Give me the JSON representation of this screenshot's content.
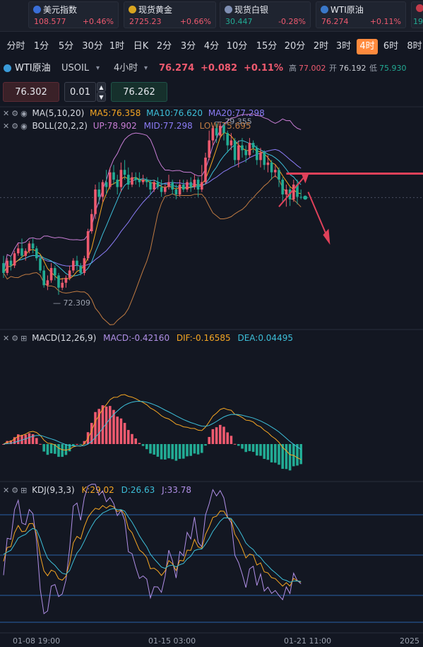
{
  "ticker": [
    {
      "name": "美元指数",
      "price": "108.577",
      "change": "+0.46%",
      "icon": "us-flag-icon",
      "dir": "up"
    },
    {
      "name": "现货黄金",
      "price": "2725.23",
      "change": "+0.66%",
      "icon": "gold-icon",
      "dir": "up"
    },
    {
      "name": "现货白银",
      "price": "30.447",
      "change": "-0.28%",
      "icon": "silver-icon",
      "dir": "down"
    },
    {
      "name": "WTI原油",
      "price": "76.274",
      "change": "+0.11%",
      "icon": "oil-icon",
      "dir": "up"
    },
    {
      "name": "",
      "price": "19",
      "change": "",
      "icon": "uk-flag-icon",
      "dir": "down"
    }
  ],
  "timeframes": [
    "分时",
    "1分",
    "5分",
    "30分",
    "1时",
    "日K",
    "2分",
    "3分",
    "4分",
    "10分",
    "15分",
    "20分",
    "2时",
    "3时",
    "4时",
    "6时",
    "8时"
  ],
  "active_timeframe": "4时",
  "symbol": {
    "name": "WTI原油",
    "code": "USOIL",
    "period": "4小时",
    "price": "76.274",
    "change": "+0.082",
    "change_pct": "+0.11%",
    "high_label": "高",
    "high": "77.002",
    "open_label": "开",
    "open": "76.192",
    "low_label": "低",
    "low": "75.930"
  },
  "order": {
    "sell": "76.302",
    "qty": "0.01",
    "buy": "76.262"
  },
  "ma_legend": {
    "label": "MA(5,10,20)",
    "ma5": "MA5:76.358",
    "ma10": "MA10:76.620",
    "ma20": "MA20:77.298"
  },
  "boll_legend": {
    "label": "BOLL(20,2,2)",
    "up": "UP:78.902",
    "mid": "MID:77.298",
    "low": "LOW:75.695"
  },
  "macd_legend": {
    "label": "MACD(12,26,9)",
    "macd": "MACD:-0.42160",
    "dif": "DIF:-0.16585",
    "dea": "DEA:0.04495"
  },
  "kdj_legend": {
    "label": "KDJ(9,3,3)",
    "k": "K:29.02",
    "d": "D:26.63",
    "j": "J:33.78"
  },
  "annotations": {
    "high": "79.355",
    "low": "72.309"
  },
  "x_ticks": [
    "01-08 19:00",
    "01-15 03:00",
    "01-21 11:00",
    "2025"
  ],
  "colors": {
    "up": "#ef5a6f",
    "down": "#22ab94",
    "ma5": "#f5a623",
    "ma10": "#3dbfd9",
    "ma20": "#8b7cf6",
    "boll_up": "#c77dd4",
    "boll_low": "#c07b42",
    "bg": "#131722",
    "accent": "#ff8a3d"
  },
  "chart_data": {
    "type": "candlestick",
    "ylim": [
      71.5,
      80.0
    ],
    "candles": [
      [
        73.6,
        73.2,
        73.9,
        73.0
      ],
      [
        73.2,
        73.7,
        73.8,
        73.1
      ],
      [
        73.7,
        73.5,
        73.9,
        73.3
      ],
      [
        73.5,
        74.0,
        74.1,
        73.4
      ],
      [
        74.0,
        74.2,
        74.4,
        73.9
      ],
      [
        74.2,
        73.9,
        74.6,
        73.8
      ],
      [
        73.9,
        74.1,
        74.2,
        73.7
      ],
      [
        74.1,
        74.4,
        74.5,
        74.0
      ],
      [
        74.4,
        74.2,
        74.6,
        74.0
      ],
      [
        74.2,
        73.8,
        74.3,
        73.7
      ],
      [
        73.8,
        73.3,
        73.9,
        73.2
      ],
      [
        73.3,
        72.7,
        73.5,
        72.6
      ],
      [
        72.7,
        72.9,
        73.1,
        72.5
      ],
      [
        72.9,
        73.4,
        73.6,
        72.8
      ],
      [
        73.4,
        73.1,
        73.5,
        72.9
      ],
      [
        73.1,
        72.6,
        73.2,
        72.31
      ],
      [
        72.6,
        72.8,
        73.0,
        72.5
      ],
      [
        72.8,
        73.0,
        73.1,
        72.6
      ],
      [
        73.0,
        73.3,
        73.5,
        72.9
      ],
      [
        73.3,
        73.7,
        73.8,
        73.2
      ],
      [
        73.7,
        73.5,
        73.9,
        73.3
      ],
      [
        73.5,
        73.2,
        73.6,
        73.1
      ],
      [
        73.2,
        73.8,
        73.9,
        73.1
      ],
      [
        73.8,
        74.9,
        75.0,
        73.7
      ],
      [
        74.9,
        75.6,
        75.8,
        74.8
      ],
      [
        75.6,
        76.6,
        76.8,
        75.4
      ],
      [
        76.6,
        76.3,
        76.9,
        76.0
      ],
      [
        76.3,
        76.9,
        77.0,
        76.1
      ],
      [
        76.9,
        76.7,
        77.4,
        76.4
      ],
      [
        76.7,
        77.3,
        77.5,
        76.6
      ],
      [
        77.3,
        77.0,
        77.6,
        76.8
      ],
      [
        77.0,
        76.7,
        77.2,
        76.4
      ],
      [
        76.7,
        77.4,
        77.7,
        76.5
      ],
      [
        77.4,
        77.2,
        77.8,
        77.0
      ],
      [
        77.2,
        76.8,
        77.5,
        76.6
      ],
      [
        76.8,
        77.1,
        77.3,
        76.7
      ],
      [
        77.1,
        77.0,
        77.3,
        76.8
      ],
      [
        77.0,
        76.9,
        77.3,
        76.7
      ],
      [
        76.9,
        77.0,
        77.2,
        76.8
      ],
      [
        77.0,
        76.9,
        77.1,
        76.7
      ],
      [
        76.9,
        76.6,
        77.0,
        76.4
      ],
      [
        76.6,
        76.9,
        77.0,
        76.5
      ],
      [
        76.9,
        76.7,
        77.1,
        76.6
      ],
      [
        76.7,
        76.5,
        77.0,
        76.3
      ],
      [
        76.5,
        76.7,
        76.8,
        76.4
      ],
      [
        76.7,
        76.9,
        77.2,
        76.6
      ],
      [
        76.9,
        76.6,
        77.0,
        76.4
      ],
      [
        76.6,
        76.4,
        76.8,
        76.2
      ],
      [
        76.4,
        76.8,
        77.0,
        76.3
      ],
      [
        76.8,
        76.6,
        77.0,
        76.5
      ],
      [
        76.6,
        76.9,
        77.0,
        76.5
      ],
      [
        76.9,
        76.7,
        77.1,
        76.5
      ],
      [
        76.7,
        77.0,
        77.2,
        76.6
      ],
      [
        77.0,
        76.6,
        77.1,
        76.3
      ],
      [
        76.6,
        76.9,
        77.6,
        76.5
      ],
      [
        76.9,
        77.9,
        78.1,
        76.8
      ],
      [
        77.9,
        78.6,
        79.0,
        77.8
      ],
      [
        78.6,
        79.1,
        79.2,
        78.4
      ],
      [
        79.1,
        78.8,
        79.3,
        78.5
      ],
      [
        78.8,
        79.2,
        79.355,
        78.7
      ],
      [
        79.2,
        78.9,
        79.3,
        78.6
      ],
      [
        78.9,
        78.4,
        79.0,
        78.1
      ],
      [
        78.4,
        78.6,
        78.9,
        78.2
      ],
      [
        78.6,
        77.8,
        78.7,
        77.6
      ],
      [
        77.8,
        78.4,
        78.6,
        77.5
      ],
      [
        78.4,
        78.2,
        78.7,
        77.9
      ],
      [
        78.2,
        78.0,
        78.4,
        77.7
      ],
      [
        78.0,
        78.5,
        78.7,
        77.9
      ],
      [
        78.5,
        78.3,
        78.6,
        78.1
      ],
      [
        78.3,
        77.8,
        78.4,
        77.6
      ],
      [
        77.8,
        78.1,
        78.3,
        77.5
      ],
      [
        78.1,
        77.6,
        78.2,
        77.4
      ],
      [
        77.6,
        77.7,
        78.0,
        77.3
      ],
      [
        77.7,
        77.3,
        77.8,
        77.0
      ],
      [
        77.3,
        77.4,
        77.6,
        77.1
      ],
      [
        77.4,
        77.0,
        77.5,
        76.7
      ],
      [
        77.0,
        76.4,
        77.1,
        76.1
      ],
      [
        76.4,
        76.6,
        76.8,
        75.9
      ],
      [
        76.6,
        76.2,
        76.7,
        75.93
      ],
      [
        76.2,
        76.8,
        77.0,
        76.1
      ],
      [
        76.8,
        76.3,
        77.0,
        76.0
      ],
      [
        76.3,
        76.274,
        76.6,
        76.2
      ]
    ],
    "ma5_last": 76.358,
    "ma10_last": 76.62,
    "ma20_last": 77.298,
    "boll": {
      "up": 78.902,
      "mid": 77.298,
      "low": 75.695
    },
    "macd": {
      "dif": -0.16585,
      "dea": 0.04495,
      "hist": -0.4216
    },
    "kdj": {
      "k": 29.02,
      "d": 26.63,
      "j": 33.78
    }
  }
}
